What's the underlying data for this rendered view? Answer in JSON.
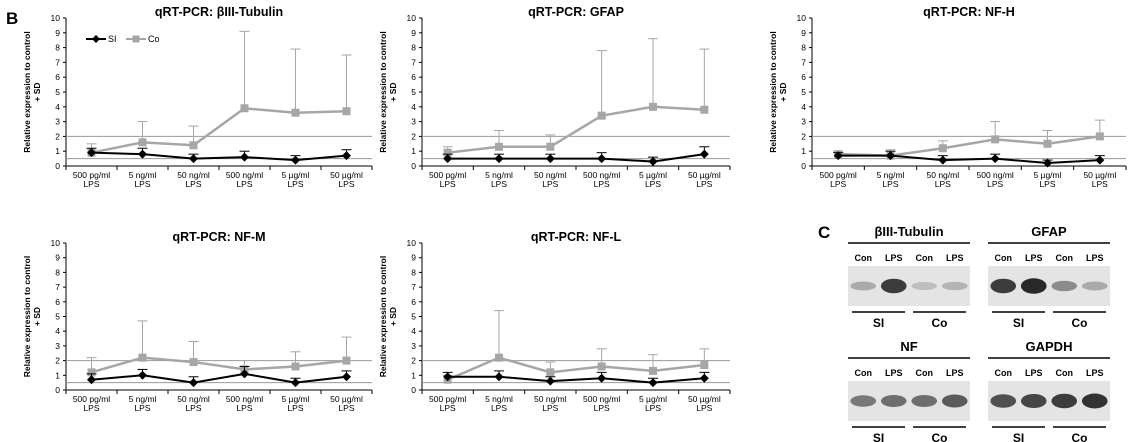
{
  "panel_b": "B",
  "panel_c": "C",
  "legend": {
    "series": [
      {
        "name": "SI",
        "color": "#000000"
      },
      {
        "name": "Co",
        "color": "#a6a6a6"
      }
    ]
  },
  "chart_data": [
    {
      "type": "line",
      "title": "qRT-PCR: βIII-Tubulin",
      "ylabel": [
        "Relative expression to control",
        "+ SD"
      ],
      "categories": [
        [
          "500 pg/ml",
          "LPS"
        ],
        [
          "5 ng/ml",
          "LPS"
        ],
        [
          "50 ng/ml",
          "LPS"
        ],
        [
          "500 ng/ml",
          "LPS"
        ],
        [
          "5 µg/ml",
          "LPS"
        ],
        [
          "50 µg/ml",
          "LPS"
        ]
      ],
      "ylim": [
        0,
        10
      ],
      "yticks": [
        0,
        1,
        2,
        3,
        4,
        5,
        6,
        7,
        8,
        9,
        10
      ],
      "reference_lines": [
        0.5,
        2
      ],
      "series": [
        {
          "name": "SI",
          "color": "#000000",
          "marker": "diamond",
          "values": [
            0.9,
            0.8,
            0.5,
            0.6,
            0.4,
            0.7
          ],
          "sd": [
            0.3,
            0.4,
            0.3,
            0.4,
            0.3,
            0.4
          ]
        },
        {
          "name": "Co",
          "color": "#a6a6a6",
          "marker": "square",
          "values": [
            0.9,
            1.6,
            1.4,
            3.9,
            3.6,
            3.7
          ],
          "sd": [
            0.6,
            1.4,
            1.3,
            5.2,
            4.3,
            3.8
          ]
        }
      ]
    },
    {
      "type": "line",
      "title": "qRT-PCR: GFAP",
      "ylabel": [
        "Relative expression to control",
        "+ SD"
      ],
      "categories": [
        [
          "500 pg/ml",
          "LPS"
        ],
        [
          "5 ng/ml",
          "LPS"
        ],
        [
          "50 ng/ml",
          "LPS"
        ],
        [
          "500 ng/ml",
          "LPS"
        ],
        [
          "5 µg/ml",
          "LPS"
        ],
        [
          "50 µg/ml",
          "LPS"
        ]
      ],
      "ylim": [
        0,
        10
      ],
      "yticks": [
        0,
        1,
        2,
        3,
        4,
        5,
        6,
        7,
        8,
        9,
        10
      ],
      "reference_lines": [
        0.5,
        2
      ],
      "series": [
        {
          "name": "SI",
          "color": "#000000",
          "marker": "diamond",
          "values": [
            0.5,
            0.5,
            0.5,
            0.5,
            0.3,
            0.8
          ],
          "sd": [
            0.3,
            0.3,
            0.3,
            0.4,
            0.3,
            0.5
          ]
        },
        {
          "name": "Co",
          "color": "#a6a6a6",
          "marker": "square",
          "values": [
            0.9,
            1.3,
            1.3,
            3.4,
            4.0,
            3.8
          ],
          "sd": [
            0.4,
            1.1,
            0.8,
            4.4,
            4.6,
            4.1
          ]
        }
      ]
    },
    {
      "type": "line",
      "title": "qRT-PCR: NF-H",
      "ylabel": [
        "Relative expression to control",
        "+ SD"
      ],
      "categories": [
        [
          "500 pg/ml",
          "LPS"
        ],
        [
          "5 ng/ml",
          "LPS"
        ],
        [
          "50 ng/ml",
          "LPS"
        ],
        [
          "500 ng/ml",
          "LPS"
        ],
        [
          "5 µg/ml",
          "LPS"
        ],
        [
          "50 µg/ml",
          "LPS"
        ]
      ],
      "ylim": [
        0,
        10
      ],
      "yticks": [
        0,
        1,
        2,
        3,
        4,
        5,
        6,
        7,
        8,
        9,
        10
      ],
      "reference_lines": [
        0.5,
        2
      ],
      "series": [
        {
          "name": "SI",
          "color": "#000000",
          "marker": "diamond",
          "values": [
            0.7,
            0.7,
            0.4,
            0.5,
            0.2,
            0.4
          ],
          "sd": [
            0.2,
            0.3,
            0.3,
            0.3,
            0.2,
            0.3
          ]
        },
        {
          "name": "Co",
          "color": "#a6a6a6",
          "marker": "square",
          "values": [
            0.8,
            0.7,
            1.2,
            1.8,
            1.5,
            2.0
          ],
          "sd": [
            0.2,
            0.4,
            0.5,
            1.2,
            0.9,
            1.1
          ]
        }
      ]
    },
    {
      "type": "line",
      "title": "qRT-PCR: NF-M",
      "ylabel": [
        "Relative expression to control",
        "+ SD"
      ],
      "categories": [
        [
          "500 pg/ml",
          "LPS"
        ],
        [
          "5 ng/ml",
          "LPS"
        ],
        [
          "50 ng/ml",
          "LPS"
        ],
        [
          "500 ng/ml",
          "LPS"
        ],
        [
          "5 µg/ml",
          "LPS"
        ],
        [
          "50 µg/ml",
          "LPS"
        ]
      ],
      "ylim": [
        0,
        10
      ],
      "yticks": [
        0,
        1,
        2,
        3,
        4,
        5,
        6,
        7,
        8,
        9,
        10
      ],
      "reference_lines": [
        0.5,
        2
      ],
      "series": [
        {
          "name": "SI",
          "color": "#000000",
          "marker": "diamond",
          "values": [
            0.7,
            1.0,
            0.5,
            1.1,
            0.5,
            0.9
          ],
          "sd": [
            0.4,
            0.4,
            0.4,
            0.5,
            0.3,
            0.4
          ]
        },
        {
          "name": "Co",
          "color": "#a6a6a6",
          "marker": "square",
          "values": [
            1.2,
            2.2,
            1.9,
            1.4,
            1.6,
            2.0
          ],
          "sd": [
            1.0,
            2.5,
            1.4,
            0.6,
            1.0,
            1.6
          ]
        }
      ]
    },
    {
      "type": "line",
      "title": "qRT-PCR: NF-L",
      "ylabel": [
        "Relative expression to control",
        "+ SD"
      ],
      "categories": [
        [
          "500 pg/ml",
          "LPS"
        ],
        [
          "5 ng/ml",
          "LPS"
        ],
        [
          "50 ng/ml",
          "LPS"
        ],
        [
          "500 ng/ml",
          "LPS"
        ],
        [
          "5 µg/ml",
          "LPS"
        ],
        [
          "50 µg/ml",
          "LPS"
        ]
      ],
      "ylim": [
        0,
        10
      ],
      "yticks": [
        0,
        1,
        2,
        3,
        4,
        5,
        6,
        7,
        8,
        9,
        10
      ],
      "reference_lines": [
        0.5,
        2
      ],
      "series": [
        {
          "name": "SI",
          "color": "#000000",
          "marker": "diamond",
          "values": [
            0.9,
            0.9,
            0.6,
            0.8,
            0.5,
            0.8
          ],
          "sd": [
            0.3,
            0.4,
            0.3,
            0.4,
            0.3,
            0.4
          ]
        },
        {
          "name": "Co",
          "color": "#a6a6a6",
          "marker": "square",
          "values": [
            0.7,
            2.2,
            1.2,
            1.6,
            1.3,
            1.7
          ],
          "sd": [
            0.3,
            3.2,
            0.7,
            1.2,
            1.1,
            1.1
          ]
        }
      ]
    }
  ],
  "blots": [
    {
      "title": "βIII-Tubulin",
      "lanes": [
        "Con",
        "LPS",
        "Con",
        "LPS"
      ],
      "groups": [
        "SI",
        "Co"
      ],
      "band_intensities": [
        0.3,
        0.85,
        0.2,
        0.25
      ]
    },
    {
      "title": "GFAP",
      "lanes": [
        "Con",
        "LPS",
        "Con",
        "LPS"
      ],
      "groups": [
        "SI",
        "Co"
      ],
      "band_intensities": [
        0.85,
        0.95,
        0.45,
        0.3
      ]
    },
    {
      "title": "NF",
      "lanes": [
        "Con",
        "LPS",
        "Con",
        "LPS"
      ],
      "groups": [
        "SI",
        "Co"
      ],
      "band_intensities": [
        0.55,
        0.6,
        0.6,
        0.7
      ]
    },
    {
      "title": "GAPDH",
      "lanes": [
        "Con",
        "LPS",
        "Con",
        "LPS"
      ],
      "groups": [
        "SI",
        "Co"
      ],
      "band_intensities": [
        0.75,
        0.8,
        0.85,
        0.9
      ]
    }
  ]
}
